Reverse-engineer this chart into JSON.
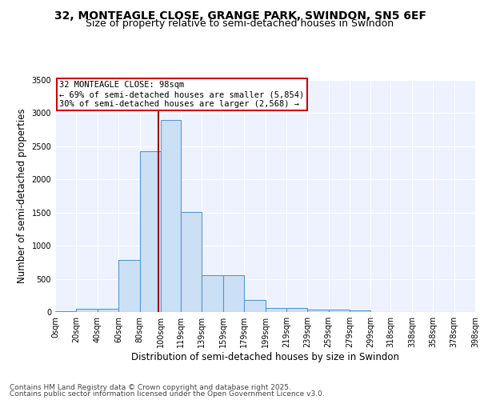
{
  "title_line1": "32, MONTEAGLE CLOSE, GRANGE PARK, SWINDON, SN5 6EF",
  "title_line2": "Size of property relative to semi-detached houses in Swindon",
  "xlabel": "Distribution of semi-detached houses by size in Swindon",
  "ylabel": "Number of semi-detached properties",
  "footer_line1": "Contains HM Land Registry data © Crown copyright and database right 2025.",
  "footer_line2": "Contains public sector information licensed under the Open Government Licence v3.0.",
  "bar_edges": [
    0,
    20,
    40,
    60,
    80,
    100,
    119,
    139,
    159,
    179,
    199,
    219,
    239,
    259,
    279,
    299,
    318,
    338,
    358,
    378,
    398
  ],
  "bar_heights": [
    15,
    45,
    45,
    780,
    2430,
    2900,
    1510,
    555,
    555,
    185,
    65,
    65,
    35,
    35,
    20,
    0,
    0,
    0,
    0,
    0
  ],
  "bar_color": "#cce0f5",
  "bar_edge_color": "#5599cc",
  "bar_linewidth": 0.8,
  "vline_x": 98,
  "vline_color": "#990000",
  "annotation_text": "32 MONTEAGLE CLOSE: 98sqm\n← 69% of semi-detached houses are smaller (5,854)\n30% of semi-detached houses are larger (2,568) →",
  "annotation_box_color": "#ffffff",
  "annotation_box_edge": "#cc0000",
  "ylim": [
    0,
    3500
  ],
  "yticks": [
    0,
    500,
    1000,
    1500,
    2000,
    2500,
    3000,
    3500
  ],
  "xtick_labels": [
    "0sqm",
    "20sqm",
    "40sqm",
    "60sqm",
    "80sqm",
    "100sqm",
    "119sqm",
    "139sqm",
    "159sqm",
    "179sqm",
    "199sqm",
    "219sqm",
    "239sqm",
    "259sqm",
    "279sqm",
    "299sqm",
    "318sqm",
    "338sqm",
    "358sqm",
    "378sqm",
    "398sqm"
  ],
  "bg_color": "#eef2ff",
  "grid_color": "#ffffff",
  "title_fontsize": 10,
  "subtitle_fontsize": 9,
  "axis_label_fontsize": 8.5,
  "tick_fontsize": 7,
  "footer_fontsize": 6.5,
  "annotation_fontsize": 7.5
}
